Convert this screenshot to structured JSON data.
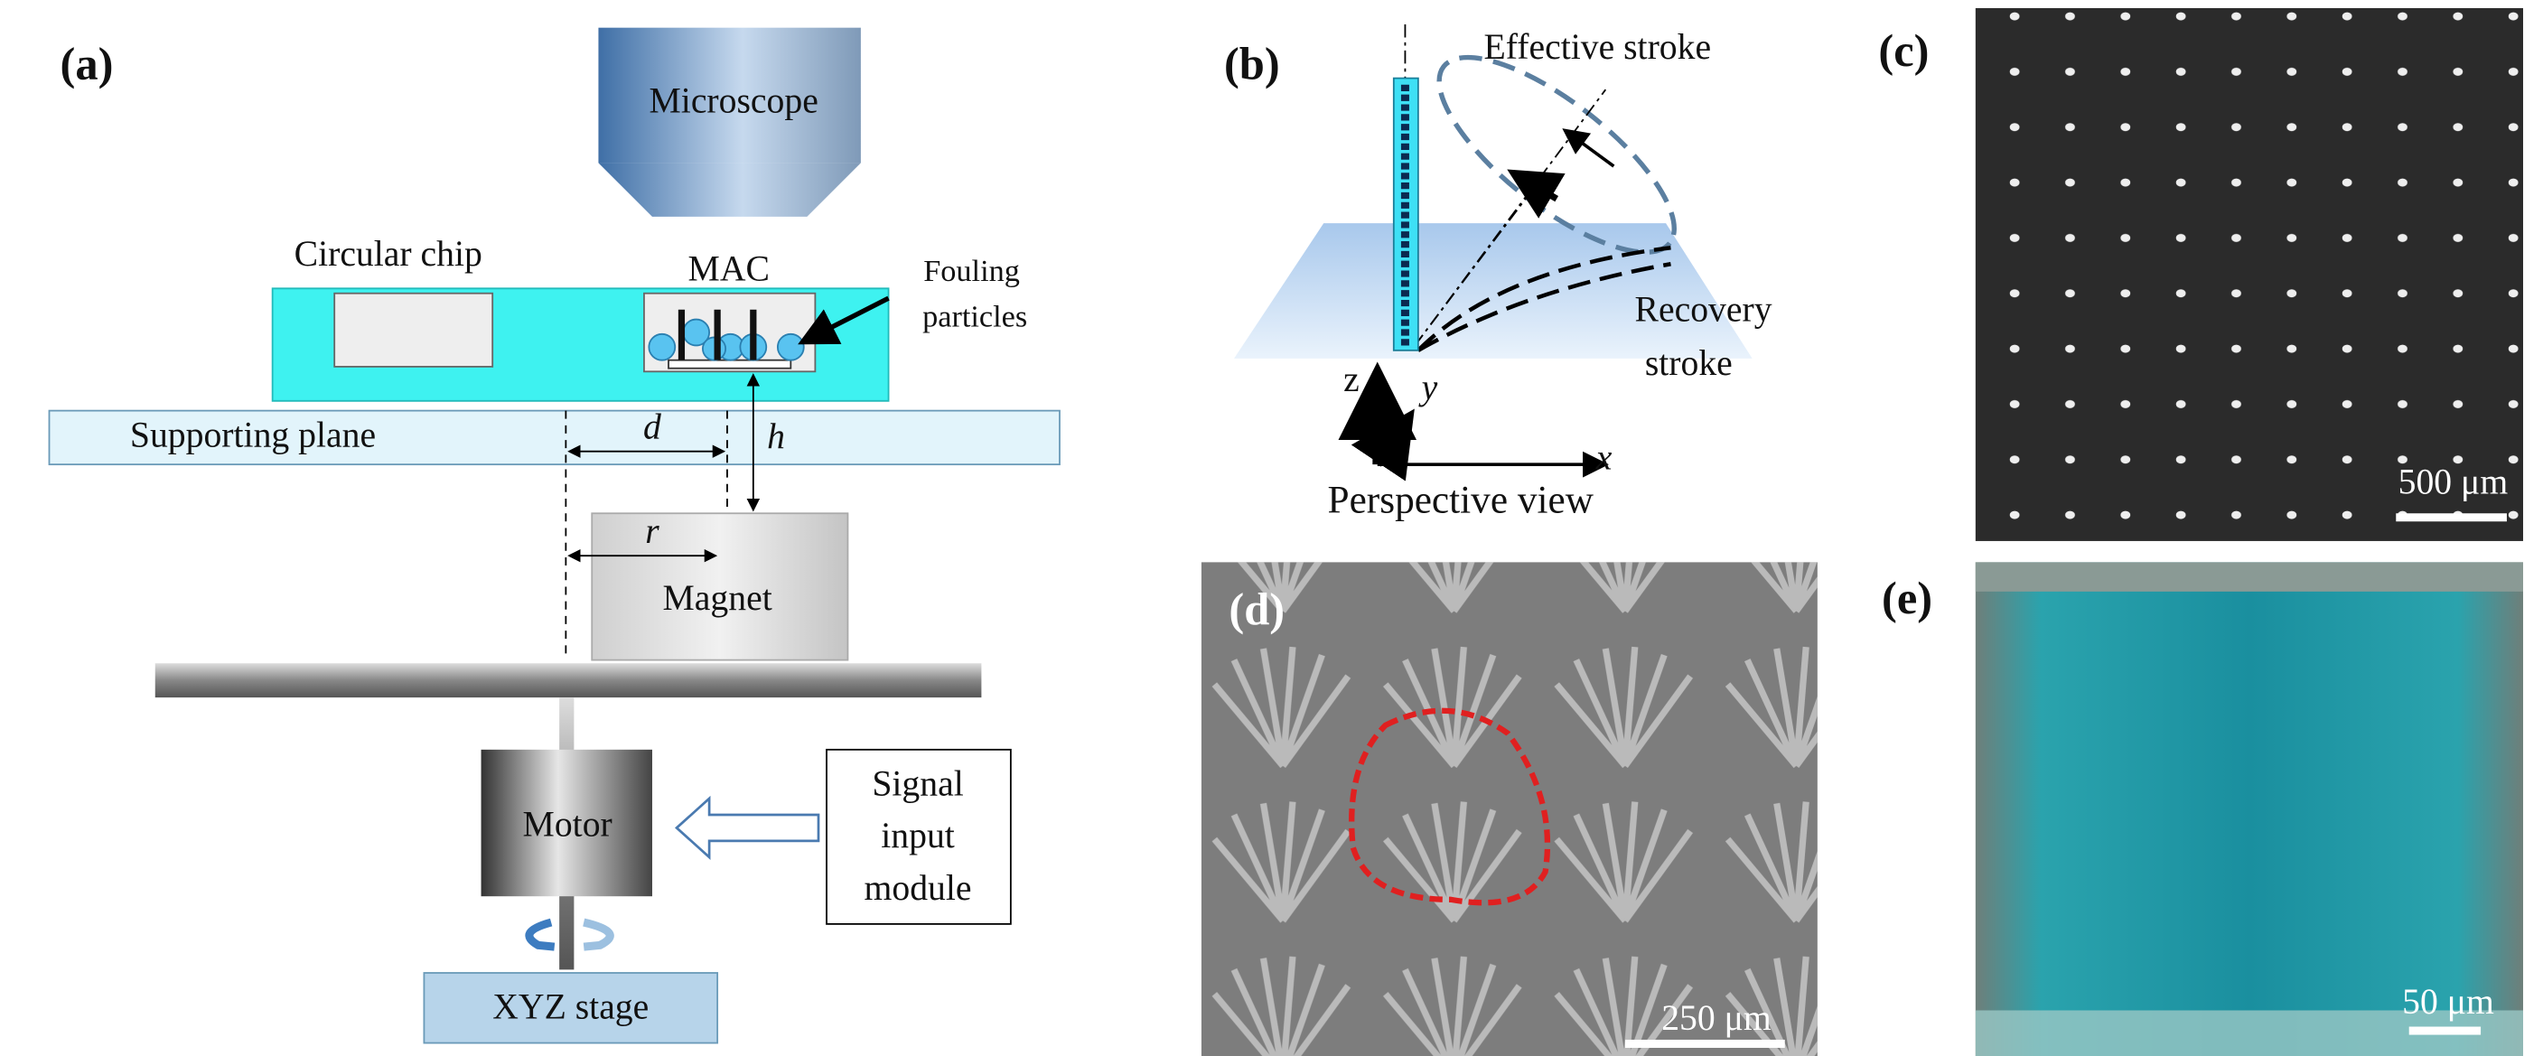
{
  "panels": {
    "a": {
      "label": "(a)",
      "microscope": "Microscope",
      "chip": "Circular chip",
      "mac": "MAC",
      "fouling": [
        "Fouling",
        "particles"
      ],
      "plane": "Supporting plane",
      "d": "d",
      "h": "h",
      "r": "r",
      "magnet": "Magnet",
      "motor": "Motor",
      "signal": [
        "Signal",
        "input",
        "module"
      ],
      "stage": "XYZ stage"
    },
    "b": {
      "label": "(b)",
      "effective": "Effective stroke",
      "recovery": [
        "Recovery",
        "stroke"
      ],
      "z": "z",
      "y": "y",
      "x": "x",
      "view": "Perspective view"
    },
    "c": {
      "label": "(c)",
      "scale": "500 μm"
    },
    "d": {
      "label": "(d)",
      "scale": "250 μm"
    },
    "e": {
      "label": "(e)",
      "scale": "50 μm"
    }
  }
}
